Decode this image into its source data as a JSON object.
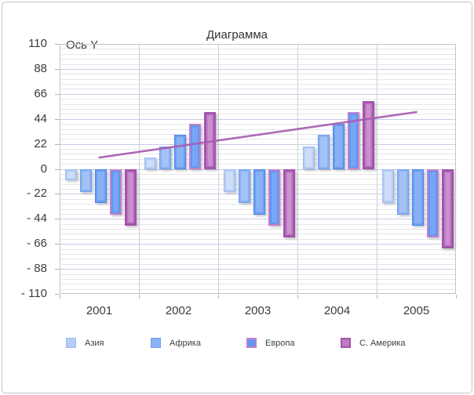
{
  "title": "Диаграмма",
  "y_axis": {
    "title": "Ось Y",
    "max": 110,
    "min": -110,
    "major_step": 22,
    "minor_divisions": 5,
    "ticks": [
      {
        "label": "110",
        "value": 110
      },
      {
        "label": "88",
        "value": 88
      },
      {
        "label": "66",
        "value": 66
      },
      {
        "label": "44",
        "value": 44
      },
      {
        "label": "22",
        "value": 22
      },
      {
        "label": "0",
        "value": 0
      },
      {
        "label": "- 22",
        "value": -22
      },
      {
        "label": "- 44",
        "value": -44
      },
      {
        "label": "- 66",
        "value": -66
      },
      {
        "label": "- 88",
        "value": -88
      },
      {
        "label": "- 110",
        "value": -110
      }
    ]
  },
  "x_axis": {
    "categories": [
      "2001",
      "2002",
      "2003",
      "2004",
      "2005"
    ]
  },
  "legend": {
    "items": [
      {
        "label": "Азия",
        "fill": "#b5cdf4",
        "border": "#9dbcee",
        "border_width": 1
      },
      {
        "label": "Африка",
        "fill": "#8ab1f3",
        "border": "#6f9fee",
        "border_width": 1
      },
      {
        "label": "Европа",
        "fill": "#5d97f3",
        "border": "#c77fcb",
        "border_width": 2
      },
      {
        "label": "С. Америка",
        "fill": "#bd7cc4",
        "border": "#a553ac",
        "border_width": 2
      }
    ]
  },
  "chart_data": {
    "type": "bar",
    "title": "Диаграмма",
    "y_axis_title": "Ось Y",
    "categories": [
      "2001",
      "2002",
      "2003",
      "2004",
      "2005"
    ],
    "ylim": [
      -110,
      110
    ],
    "y_major_step": 22,
    "grid": true,
    "legend_position": "bottom",
    "series": [
      {
        "name": "Азия",
        "values": [
          -10,
          10,
          -20,
          20,
          -30
        ],
        "fill": "#b5cdf4",
        "border": "#9dbcee",
        "inner": "#cfdef9",
        "border_width": 1
      },
      {
        "name": "Африка",
        "values": [
          -20,
          20,
          -30,
          30,
          -40
        ],
        "fill": "#8ab1f3",
        "border": "#6f9fee",
        "inner": "#a6c4f7",
        "border_width": 1
      },
      {
        "name": "",
        "values": [
          -30,
          30,
          -40,
          40,
          -50
        ],
        "fill": "#6b9ef2",
        "border": "#4f86e8",
        "inner": "#8ab2f6",
        "border_width": 1
      },
      {
        "name": "Европа",
        "values": [
          -40,
          40,
          -50,
          50,
          -60
        ],
        "fill": "#5d97f3",
        "border": "#c77fcb",
        "inner": "#79a8f6",
        "border_width": 2
      },
      {
        "name": "С. Америка",
        "values": [
          -50,
          50,
          -60,
          60,
          -70
        ],
        "fill": "#bd7cc4",
        "border": "#a553ac",
        "inner": "#cb93d1",
        "border_width": 3
      }
    ],
    "trend_line": {
      "from": {
        "category": "2001",
        "value": 10
      },
      "to": {
        "category": "2005",
        "value": 50
      },
      "color": "#a95cb4"
    }
  }
}
